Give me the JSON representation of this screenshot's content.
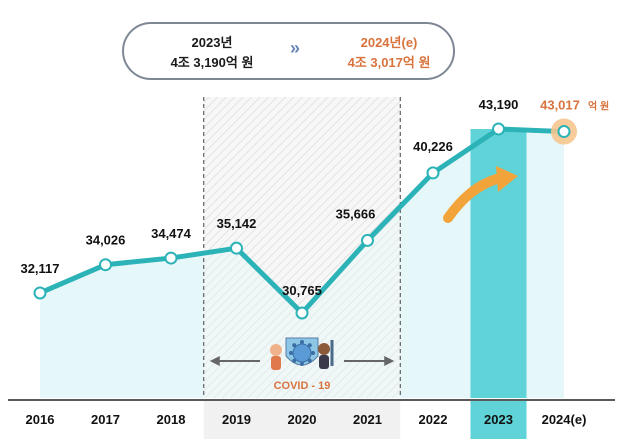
{
  "summary": {
    "left_year": "2023년",
    "left_value": "4조 3,190억 원",
    "arrow": "»",
    "right_year": "2024년(e)",
    "right_value": "4조 3,017억 원"
  },
  "colors": {
    "line": "#2bb3b7",
    "area": "#e2f6f8",
    "highlight_bar": "#5fd3d8",
    "forecast": "#d9733d",
    "covid_band": "#f1f1f1",
    "arrow": "#f2a33a"
  },
  "covid_label": "COVID - 19",
  "chart_data": {
    "type": "line",
    "categories": [
      "2016",
      "2017",
      "2018",
      "2019",
      "2020",
      "2021",
      "2022",
      "2023",
      "2024(e)"
    ],
    "values": [
      32117,
      34026,
      34474,
      35142,
      30765,
      35666,
      40226,
      43190,
      43017
    ],
    "value_labels": [
      "32,117",
      "34,026",
      "34,474",
      "35,142",
      "30,765",
      "35,666",
      "40,226",
      "43,190",
      "43,017"
    ],
    "forecast_unit": "억 원",
    "highlight_category": "2023",
    "forecast_category": "2024(e)",
    "covid_range": [
      "2019",
      "2021"
    ]
  }
}
